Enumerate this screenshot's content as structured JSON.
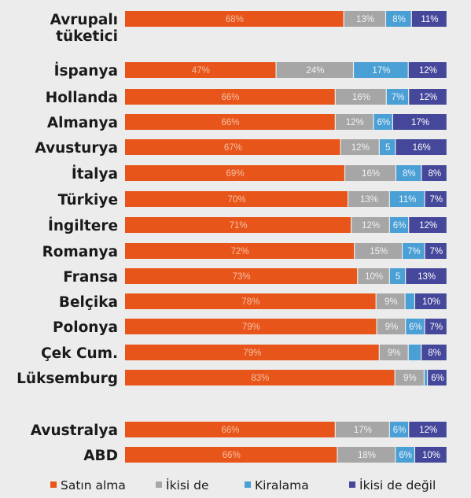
{
  "chart_data": {
    "type": "bar",
    "orientation": "horizontal",
    "stacked": true,
    "unit": "%",
    "grid": false,
    "legend_position": "bottom",
    "categories": [
      "Avrupalı tüketici",
      "İspanya",
      "Hollanda",
      "Almanya",
      "Avusturya",
      "İtalya",
      "Türkiye",
      "İngiltere",
      "Romanya",
      "Fransa",
      "Belçika",
      "Polonya",
      "Çek Cum.",
      "Lüksemburg",
      "Avustralya",
      "ABD"
    ],
    "category_lines": [
      [
        "Avrupalı",
        "tüketici"
      ],
      [
        "İspanya"
      ],
      [
        "Hollanda"
      ],
      [
        "Almanya"
      ],
      [
        "Avusturya"
      ],
      [
        "İtalya"
      ],
      [
        "Türkiye"
      ],
      [
        "İngiltere"
      ],
      [
        "Romanya"
      ],
      [
        "Fransa"
      ],
      [
        "Belçika"
      ],
      [
        "Polonya"
      ],
      [
        "Çek Cum."
      ],
      [
        "Lüksemburg"
      ],
      [
        "Avustralya"
      ],
      [
        "ABD"
      ]
    ],
    "series": [
      {
        "name": "Satın alma",
        "color": "#e8551a",
        "values": [
          68,
          47,
          66,
          66,
          67,
          69,
          70,
          71,
          72,
          73,
          78,
          79,
          79,
          83,
          66,
          66
        ],
        "labels": [
          "68%",
          "47%",
          "66%",
          "66%",
          "67%",
          "69%",
          "70%",
          "71%",
          "72%",
          "73%",
          "78%",
          "79%",
          "79%",
          "83%",
          "66%",
          "66%"
        ]
      },
      {
        "name": "İkisi de",
        "color": "#a6a6a6",
        "values": [
          13,
          24,
          16,
          12,
          12,
          16,
          13,
          12,
          15,
          10,
          9,
          9,
          9,
          9,
          17,
          18
        ],
        "labels": [
          "13%",
          "24%",
          "16%",
          "12%",
          "12%",
          "16%",
          "13%",
          "12%",
          "15%",
          "10%",
          "9%",
          "9%",
          "9%",
          "9%",
          "17%",
          "18%"
        ]
      },
      {
        "name": "Kiralama",
        "color": "#4a9fd5",
        "values": [
          8,
          17,
          7,
          6,
          5,
          8,
          11,
          6,
          7,
          5,
          3,
          6,
          4,
          1,
          6,
          6
        ],
        "labels": [
          "8%",
          "17%",
          "7%",
          "6%",
          "5",
          "8%",
          "11%",
          "6%",
          "7%",
          "5",
          "",
          "6%",
          "",
          "",
          "6%",
          "6%"
        ]
      },
      {
        "name": "İkisi de değil",
        "color": "#45479a",
        "values": [
          11,
          12,
          12,
          17,
          16,
          8,
          7,
          12,
          7,
          13,
          10,
          7,
          8,
          6,
          12,
          10
        ],
        "labels": [
          "11%",
          "12%",
          "12%",
          "17%",
          "16%",
          "8%",
          "7%",
          "12%",
          "7%",
          "13%",
          "10%",
          "7%",
          "8%",
          "6%",
          "12%",
          "10%"
        ]
      }
    ]
  }
}
